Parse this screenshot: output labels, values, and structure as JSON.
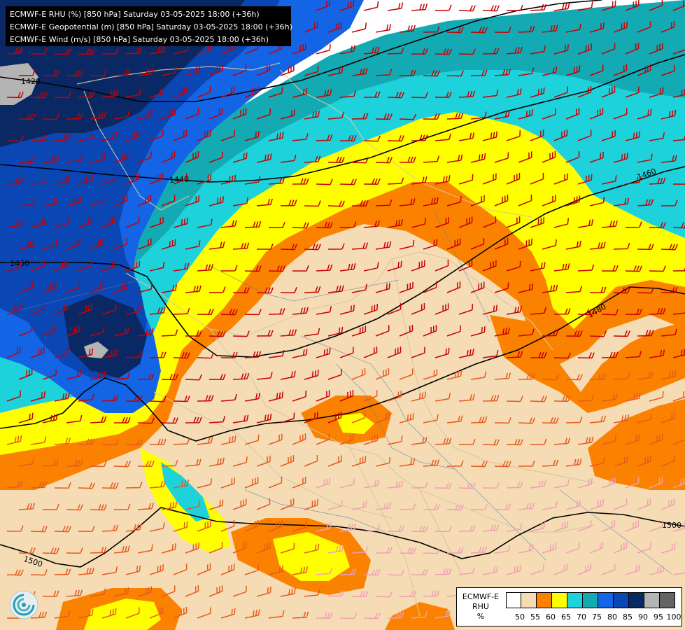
{
  "header": {
    "line1": "ECMWF-E RHU (%) [850 hPa] Saturday 03-05-2025 18:00 (+36h)",
    "line2": "ECMWF-E Geopotential (m) [850 hPa] Saturday 03-05-2025 18:00 (+36h)",
    "line3": "ECMWF-E Wind (m/s) [850 hPa] Saturday 03-05-2025 18:00 (+36h)"
  },
  "legend": {
    "title_line1": "ECMWF-E",
    "title_line2": "RHU",
    "title_line3": "%",
    "bins": [
      {
        "color": "#ffffff"
      },
      {
        "color": "#f5dcb4"
      },
      {
        "color": "#fa8200"
      },
      {
        "color": "#ffff00"
      },
      {
        "color": "#1ed2dc"
      },
      {
        "color": "#14aab4"
      },
      {
        "color": "#1464e6"
      },
      {
        "color": "#0a46b4"
      },
      {
        "color": "#0a2864"
      },
      {
        "color": "#b4b4b4"
      },
      {
        "color": "#646464"
      }
    ],
    "ticks": [
      "50",
      "55",
      "60",
      "65",
      "70",
      "75",
      "80",
      "85",
      "90",
      "95",
      "100"
    ]
  },
  "contours": {
    "labels": [
      "1420",
      "1440",
      "1460",
      "1460",
      "1480",
      "1500",
      "1500"
    ]
  },
  "colors": {
    "white": "#ffffff",
    "tan": "#f5dcb4",
    "orange": "#fa8200",
    "yellow": "#ffff00",
    "cyan": "#1ed2dc",
    "teal": "#14aab4",
    "blue": "#1464e6",
    "midblue": "#0a46b4",
    "navy": "#0a2864",
    "grey": "#b4b4b4",
    "darkgrey": "#646464",
    "barb_dark": "#c80000",
    "barb_mid": "#e65a1e",
    "barb_light": "#f0a0b4"
  }
}
